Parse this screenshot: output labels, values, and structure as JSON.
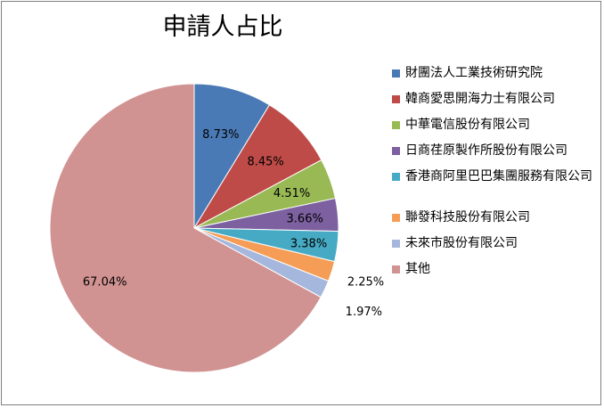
{
  "chart_data": {
    "type": "pie",
    "title": "申請人占比",
    "slices": [
      {
        "label": "財團法人工業技術研究院",
        "value": 8.73,
        "display": "8.73%",
        "color": "#4a7ab5"
      },
      {
        "label": "韓商愛思開海力士有限公司",
        "value": 8.45,
        "display": "8.45%",
        "color": "#be4b48"
      },
      {
        "label": "中華電信股份有限公司",
        "value": 4.51,
        "display": "4.51%",
        "color": "#98b954"
      },
      {
        "label": "日商荏原製作所股份有限公司",
        "value": 3.66,
        "display": "3.66%",
        "color": "#7d60a0"
      },
      {
        "label": "香港商阿里巴巴集團服務有限公司",
        "value": 3.38,
        "display": "3.38%",
        "color": "#46aac4"
      },
      {
        "label": "聯發科技股份有限公司",
        "value": 2.25,
        "display": "2.25%",
        "color": "#f59d56"
      },
      {
        "label": "未來市股份有限公司",
        "value": 1.97,
        "display": "1.97%",
        "color": "#a5b7dc"
      },
      {
        "label": "其他",
        "value": 67.04,
        "display": "67.04%",
        "color": "#d19392"
      }
    ],
    "legend_position": "right"
  }
}
